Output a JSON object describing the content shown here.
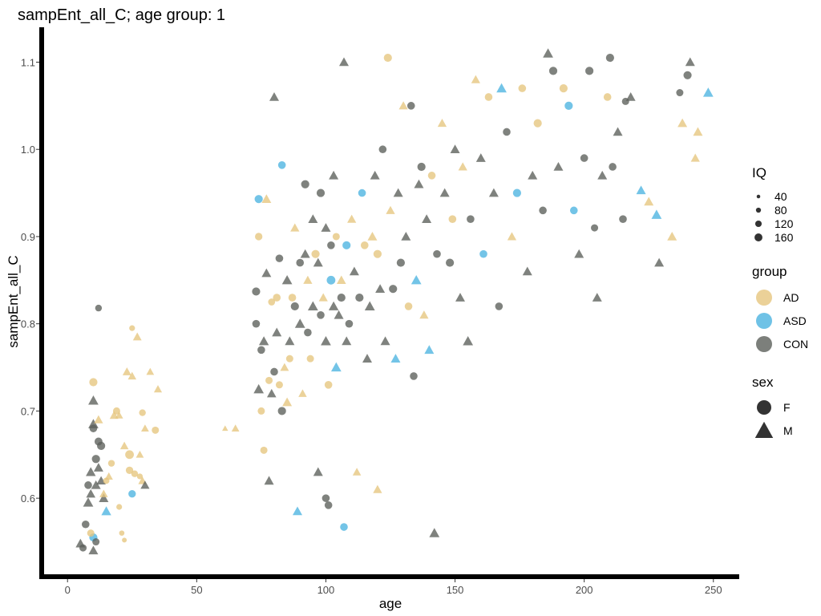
{
  "chart_data": {
    "type": "scatter",
    "title": "sampEnt_all_C; age group: 1",
    "xlabel": "age",
    "ylabel": "sampEnt_all_C",
    "xlim": [
      -10,
      260
    ],
    "ylim": [
      0.51,
      1.14
    ],
    "xticks": [
      0,
      50,
      100,
      150,
      200,
      250
    ],
    "yticks": [
      0.6,
      0.7,
      0.8,
      0.9,
      1.0,
      1.1
    ],
    "xtick_labels": [
      "0",
      "50",
      "100",
      "150",
      "200",
      "250"
    ],
    "ytick_labels": [
      "0.6",
      "0.7",
      "0.8",
      "0.9",
      "1.0",
      "1.1"
    ],
    "grid": false,
    "legend_position": "right",
    "groups": [
      {
        "name": "AD",
        "color": "#E6C57E"
      },
      {
        "name": "ASD",
        "color": "#4BB3E0"
      },
      {
        "name": "CON",
        "color": "#5B5F5A"
      }
    ],
    "sexes": [
      {
        "name": "F",
        "shape": "circle"
      },
      {
        "name": "M",
        "shape": "triangle"
      }
    ],
    "iq_legend": {
      "title": "IQ",
      "values": [
        40,
        80,
        120,
        160
      ],
      "labels": [
        "40",
        "80",
        "120",
        "160"
      ]
    },
    "group_legend_title": "group",
    "sex_legend_title": "sex",
    "points": [
      [
        5,
        0.548,
        "CON",
        "M",
        100
      ],
      [
        6,
        0.543,
        "CON",
        "F",
        90
      ],
      [
        7,
        0.57,
        "CON",
        "F",
        100
      ],
      [
        8,
        0.595,
        "CON",
        "M",
        110
      ],
      [
        8,
        0.615,
        "CON",
        "F",
        100
      ],
      [
        9,
        0.605,
        "CON",
        "M",
        95
      ],
      [
        9,
        0.63,
        "CON",
        "M",
        105
      ],
      [
        10,
        0.685,
        "CON",
        "M",
        110
      ],
      [
        10,
        0.68,
        "CON",
        "F",
        100
      ],
      [
        10,
        0.555,
        "ASD",
        "F",
        110
      ],
      [
        10,
        0.54,
        "CON",
        "M",
        100
      ],
      [
        11,
        0.55,
        "CON",
        "F",
        90
      ],
      [
        11,
        0.615,
        "CON",
        "M",
        100
      ],
      [
        11,
        0.645,
        "CON",
        "F",
        110
      ],
      [
        12,
        0.665,
        "CON",
        "F",
        105
      ],
      [
        12,
        0.818,
        "CON",
        "F",
        80
      ],
      [
        12,
        0.635,
        "CON",
        "M",
        100
      ],
      [
        13,
        0.62,
        "CON",
        "M",
        95
      ],
      [
        13,
        0.66,
        "CON",
        "F",
        110
      ],
      [
        14,
        0.6,
        "CON",
        "M",
        100
      ],
      [
        14,
        0.605,
        "AD",
        "M",
        80
      ],
      [
        9,
        0.56,
        "AD",
        "F",
        90
      ],
      [
        10,
        0.733,
        "AD",
        "F",
        110
      ],
      [
        10,
        0.712,
        "CON",
        "M",
        110
      ],
      [
        12,
        0.69,
        "AD",
        "M",
        90
      ],
      [
        15,
        0.62,
        "AD",
        "F",
        70
      ],
      [
        15,
        0.585,
        "ASD",
        "M",
        105
      ],
      [
        16,
        0.625,
        "AD",
        "M",
        75
      ],
      [
        17,
        0.64,
        "AD",
        "F",
        80
      ],
      [
        18,
        0.695,
        "AD",
        "M",
        85
      ],
      [
        19,
        0.7,
        "AD",
        "F",
        90
      ],
      [
        20,
        0.695,
        "AD",
        "M",
        70
      ],
      [
        20,
        0.59,
        "AD",
        "F",
        60
      ],
      [
        21,
        0.56,
        "AD",
        "F",
        50
      ],
      [
        22,
        0.552,
        "AD",
        "F",
        40
      ],
      [
        22,
        0.66,
        "AD",
        "M",
        80
      ],
      [
        23,
        0.745,
        "AD",
        "M",
        85
      ],
      [
        24,
        0.65,
        "AD",
        "F",
        120
      ],
      [
        24,
        0.632,
        "AD",
        "F",
        95
      ],
      [
        25,
        0.605,
        "ASD",
        "F",
        95
      ],
      [
        25,
        0.74,
        "AD",
        "M",
        80
      ],
      [
        25,
        0.795,
        "AD",
        "F",
        60
      ],
      [
        26,
        0.628,
        "AD",
        "F",
        80
      ],
      [
        27,
        0.785,
        "AD",
        "M",
        85
      ],
      [
        28,
        0.65,
        "AD",
        "M",
        70
      ],
      [
        28,
        0.625,
        "AD",
        "F",
        60
      ],
      [
        29,
        0.62,
        "AD",
        "M",
        80
      ],
      [
        29,
        0.698,
        "AD",
        "F",
        80
      ],
      [
        30,
        0.615,
        "CON",
        "M",
        90
      ],
      [
        30,
        0.68,
        "AD",
        "M",
        70
      ],
      [
        32,
        0.745,
        "AD",
        "M",
        70
      ],
      [
        34,
        0.678,
        "AD",
        "F",
        90
      ],
      [
        35,
        0.725,
        "AD",
        "M",
        75
      ],
      [
        61,
        0.68,
        "AD",
        "M",
        40
      ],
      [
        65,
        0.68,
        "AD",
        "M",
        70
      ],
      [
        73,
        0.837,
        "CON",
        "F",
        110
      ],
      [
        73,
        0.8,
        "CON",
        "F",
        100
      ],
      [
        74,
        0.725,
        "CON",
        "M",
        110
      ],
      [
        74,
        0.9,
        "AD",
        "F",
        95
      ],
      [
        74,
        0.943,
        "ASD",
        "F",
        110
      ],
      [
        75,
        0.77,
        "CON",
        "F",
        100
      ],
      [
        75,
        0.7,
        "AD",
        "F",
        90
      ],
      [
        76,
        0.655,
        "AD",
        "F",
        90
      ],
      [
        76,
        0.78,
        "CON",
        "M",
        105
      ],
      [
        77,
        0.858,
        "CON",
        "M",
        100
      ],
      [
        77,
        0.943,
        "AD",
        "M",
        100
      ],
      [
        78,
        0.735,
        "AD",
        "F",
        90
      ],
      [
        78,
        0.62,
        "CON",
        "M",
        100
      ],
      [
        79,
        0.72,
        "CON",
        "M",
        95
      ],
      [
        79,
        0.825,
        "AD",
        "F",
        85
      ],
      [
        80,
        1.06,
        "CON",
        "M",
        100
      ],
      [
        80,
        0.745,
        "CON",
        "F",
        100
      ],
      [
        81,
        0.79,
        "CON",
        "M",
        100
      ],
      [
        81,
        0.83,
        "AD",
        "F",
        100
      ],
      [
        82,
        0.875,
        "CON",
        "F",
        100
      ],
      [
        82,
        0.73,
        "AD",
        "F",
        90
      ],
      [
        83,
        0.7,
        "CON",
        "F",
        110
      ],
      [
        83,
        0.982,
        "ASD",
        "F",
        100
      ],
      [
        84,
        0.75,
        "AD",
        "M",
        85
      ],
      [
        85,
        0.71,
        "AD",
        "M",
        100
      ],
      [
        85,
        0.85,
        "CON",
        "M",
        110
      ],
      [
        86,
        0.78,
        "CON",
        "M",
        100
      ],
      [
        86,
        0.76,
        "AD",
        "F",
        90
      ],
      [
        87,
        0.83,
        "AD",
        "F",
        100
      ],
      [
        88,
        0.82,
        "CON",
        "F",
        110
      ],
      [
        88,
        0.91,
        "AD",
        "M",
        90
      ],
      [
        89,
        0.585,
        "ASD",
        "M",
        100
      ],
      [
        90,
        0.8,
        "CON",
        "M",
        110
      ],
      [
        90,
        0.87,
        "CON",
        "F",
        100
      ],
      [
        91,
        0.72,
        "AD",
        "M",
        80
      ],
      [
        92,
        0.88,
        "CON",
        "M",
        100
      ],
      [
        92,
        0.96,
        "CON",
        "F",
        110
      ],
      [
        93,
        0.79,
        "CON",
        "F",
        100
      ],
      [
        93,
        0.85,
        "AD",
        "M",
        90
      ],
      [
        94,
        0.76,
        "AD",
        "F",
        90
      ],
      [
        95,
        0.92,
        "CON",
        "M",
        100
      ],
      [
        95,
        0.82,
        "CON",
        "M",
        110
      ],
      [
        96,
        0.88,
        "AD",
        "F",
        110
      ],
      [
        97,
        0.87,
        "CON",
        "M",
        100
      ],
      [
        97,
        0.63,
        "CON",
        "M",
        100
      ],
      [
        98,
        0.95,
        "CON",
        "F",
        110
      ],
      [
        98,
        0.81,
        "CON",
        "F",
        100
      ],
      [
        99,
        0.83,
        "AD",
        "M",
        90
      ],
      [
        100,
        0.6,
        "CON",
        "F",
        100
      ],
      [
        100,
        0.91,
        "CON",
        "M",
        100
      ],
      [
        100,
        0.78,
        "CON",
        "M",
        110
      ],
      [
        101,
        0.73,
        "AD",
        "F",
        100
      ],
      [
        101,
        0.592,
        "CON",
        "F",
        100
      ],
      [
        102,
        0.85,
        "ASD",
        "F",
        120
      ],
      [
        102,
        0.89,
        "CON",
        "F",
        100
      ],
      [
        103,
        0.97,
        "CON",
        "M",
        100
      ],
      [
        103,
        0.82,
        "CON",
        "M",
        105
      ],
      [
        104,
        0.75,
        "ASD",
        "M",
        110
      ],
      [
        104,
        0.9,
        "AD",
        "F",
        90
      ],
      [
        105,
        0.81,
        "CON",
        "M",
        100
      ],
      [
        106,
        0.83,
        "CON",
        "F",
        110
      ],
      [
        106,
        0.85,
        "AD",
        "M",
        95
      ],
      [
        107,
        1.1,
        "CON",
        "M",
        100
      ],
      [
        107,
        0.567,
        "ASD",
        "F",
        100
      ],
      [
        108,
        0.89,
        "ASD",
        "F",
        110
      ],
      [
        108,
        0.78,
        "CON",
        "M",
        100
      ],
      [
        109,
        0.8,
        "CON",
        "F",
        100
      ],
      [
        110,
        0.92,
        "AD",
        "M",
        90
      ],
      [
        111,
        0.86,
        "CON",
        "M",
        100
      ],
      [
        112,
        0.63,
        "AD",
        "M",
        80
      ],
      [
        113,
        0.83,
        "CON",
        "F",
        110
      ],
      [
        114,
        0.95,
        "ASD",
        "F",
        100
      ],
      [
        115,
        0.89,
        "AD",
        "F",
        100
      ],
      [
        116,
        0.76,
        "CON",
        "M",
        100
      ],
      [
        117,
        0.82,
        "CON",
        "M",
        110
      ],
      [
        118,
        0.9,
        "AD",
        "M",
        100
      ],
      [
        119,
        0.97,
        "CON",
        "M",
        100
      ],
      [
        120,
        0.88,
        "AD",
        "F",
        110
      ],
      [
        120,
        0.61,
        "AD",
        "M",
        90
      ],
      [
        121,
        0.84,
        "CON",
        "M",
        100
      ],
      [
        122,
        1.0,
        "CON",
        "F",
        100
      ],
      [
        123,
        0.78,
        "CON",
        "M",
        100
      ],
      [
        124,
        1.105,
        "AD",
        "F",
        110
      ],
      [
        125,
        0.93,
        "AD",
        "M",
        90
      ],
      [
        126,
        0.84,
        "CON",
        "F",
        110
      ],
      [
        127,
        0.76,
        "ASD",
        "M",
        100
      ],
      [
        128,
        0.95,
        "CON",
        "M",
        100
      ],
      [
        129,
        0.87,
        "CON",
        "F",
        110
      ],
      [
        130,
        1.05,
        "AD",
        "M",
        90
      ],
      [
        131,
        0.9,
        "CON",
        "M",
        100
      ],
      [
        132,
        0.82,
        "AD",
        "F",
        100
      ],
      [
        133,
        1.05,
        "CON",
        "F",
        100
      ],
      [
        134,
        0.74,
        "CON",
        "F",
        100
      ],
      [
        135,
        0.85,
        "ASD",
        "M",
        110
      ],
      [
        136,
        0.96,
        "CON",
        "M",
        100
      ],
      [
        137,
        0.98,
        "CON",
        "F",
        110
      ],
      [
        138,
        0.81,
        "AD",
        "M",
        90
      ],
      [
        139,
        0.92,
        "CON",
        "M",
        100
      ],
      [
        140,
        0.77,
        "ASD",
        "M",
        100
      ],
      [
        141,
        0.97,
        "AD",
        "F",
        100
      ],
      [
        142,
        0.56,
        "CON",
        "M",
        110
      ],
      [
        143,
        0.88,
        "CON",
        "F",
        100
      ],
      [
        145,
        1.03,
        "AD",
        "M",
        90
      ],
      [
        146,
        0.95,
        "CON",
        "M",
        100
      ],
      [
        148,
        0.87,
        "CON",
        "F",
        110
      ],
      [
        149,
        0.92,
        "AD",
        "F",
        100
      ],
      [
        150,
        1.0,
        "CON",
        "M",
        100
      ],
      [
        152,
        0.83,
        "CON",
        "M",
        100
      ],
      [
        153,
        0.98,
        "AD",
        "M",
        90
      ],
      [
        155,
        0.78,
        "CON",
        "M",
        110
      ],
      [
        156,
        0.92,
        "CON",
        "F",
        100
      ],
      [
        158,
        1.08,
        "AD",
        "M",
        90
      ],
      [
        160,
        0.99,
        "CON",
        "M",
        100
      ],
      [
        161,
        0.88,
        "ASD",
        "F",
        100
      ],
      [
        163,
        1.06,
        "AD",
        "F",
        100
      ],
      [
        165,
        0.95,
        "CON",
        "M",
        100
      ],
      [
        167,
        0.82,
        "CON",
        "F",
        100
      ],
      [
        168,
        1.07,
        "ASD",
        "M",
        110
      ],
      [
        170,
        1.02,
        "CON",
        "F",
        100
      ],
      [
        172,
        0.9,
        "AD",
        "M",
        90
      ],
      [
        174,
        0.95,
        "ASD",
        "F",
        110
      ],
      [
        176,
        1.07,
        "AD",
        "F",
        100
      ],
      [
        178,
        0.86,
        "CON",
        "M",
        100
      ],
      [
        180,
        0.97,
        "CON",
        "M",
        100
      ],
      [
        182,
        1.03,
        "AD",
        "F",
        110
      ],
      [
        184,
        0.93,
        "CON",
        "F",
        100
      ],
      [
        186,
        1.11,
        "CON",
        "M",
        110
      ],
      [
        188,
        1.09,
        "CON",
        "F",
        110
      ],
      [
        190,
        0.98,
        "CON",
        "M",
        100
      ],
      [
        192,
        1.07,
        "AD",
        "F",
        110
      ],
      [
        194,
        1.05,
        "ASD",
        "F",
        110
      ],
      [
        196,
        0.93,
        "ASD",
        "F",
        100
      ],
      [
        198,
        0.88,
        "CON",
        "M",
        100
      ],
      [
        200,
        0.99,
        "CON",
        "F",
        100
      ],
      [
        202,
        1.09,
        "CON",
        "F",
        110
      ],
      [
        204,
        0.91,
        "CON",
        "F",
        90
      ],
      [
        205,
        0.83,
        "CON",
        "M",
        100
      ],
      [
        207,
        0.97,
        "CON",
        "M",
        100
      ],
      [
        209,
        1.06,
        "AD",
        "F",
        100
      ],
      [
        210,
        1.105,
        "CON",
        "F",
        110
      ],
      [
        211,
        0.98,
        "CON",
        "F",
        100
      ],
      [
        213,
        1.02,
        "CON",
        "M",
        100
      ],
      [
        215,
        0.92,
        "CON",
        "F",
        100
      ],
      [
        216,
        1.055,
        "CON",
        "F",
        90
      ],
      [
        218,
        1.06,
        "CON",
        "M",
        100
      ],
      [
        222,
        0.953,
        "ASD",
        "M",
        100
      ],
      [
        225,
        0.94,
        "AD",
        "M",
        100
      ],
      [
        228,
        0.925,
        "ASD",
        "M",
        110
      ],
      [
        229,
        0.87,
        "CON",
        "M",
        100
      ],
      [
        234,
        0.9,
        "AD",
        "M",
        100
      ],
      [
        237,
        1.065,
        "CON",
        "F",
        90
      ],
      [
        238,
        1.03,
        "AD",
        "M",
        100
      ],
      [
        240,
        1.085,
        "CON",
        "F",
        110
      ],
      [
        241,
        1.1,
        "CON",
        "M",
        100
      ],
      [
        243,
        0.99,
        "AD",
        "M",
        90
      ],
      [
        244,
        1.02,
        "AD",
        "M",
        100
      ],
      [
        248,
        1.065,
        "ASD",
        "M",
        110
      ]
    ]
  }
}
